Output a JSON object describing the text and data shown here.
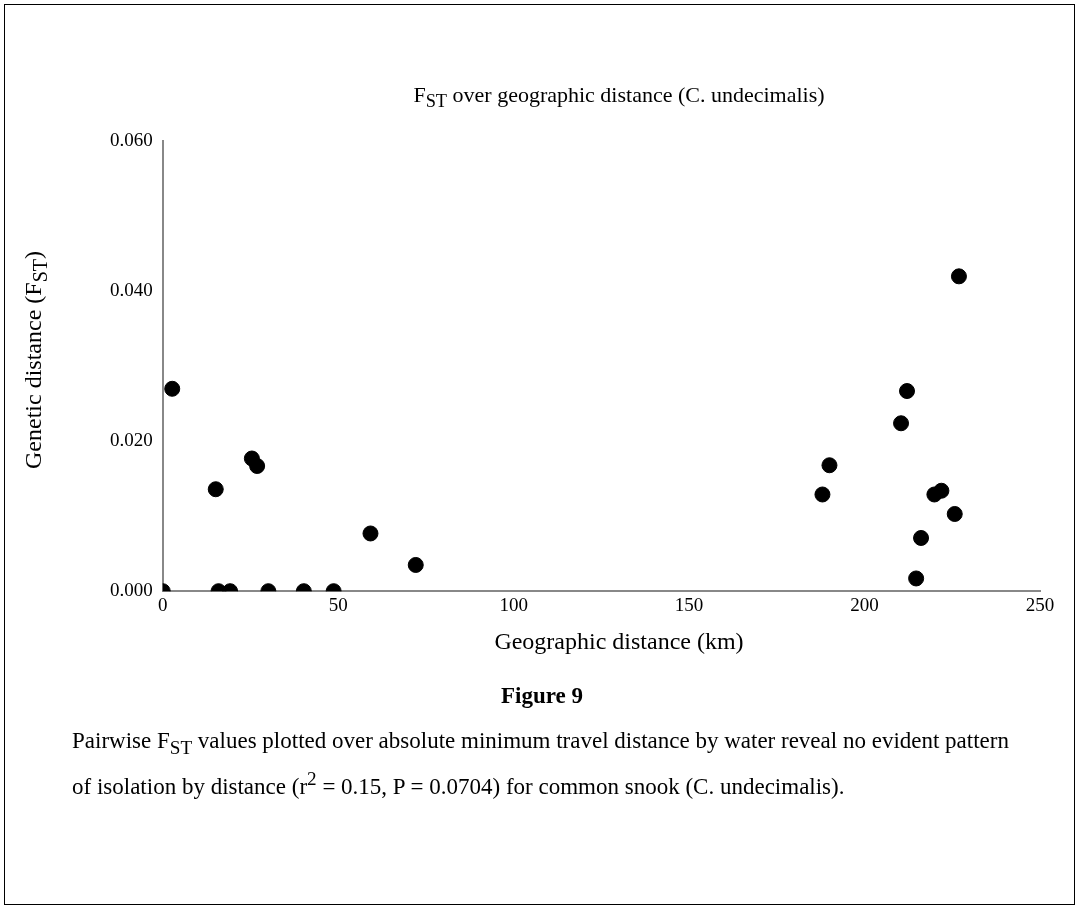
{
  "chart_data": {
    "type": "scatter",
    "title": "F$_{ST}$ over geographic distance (C. undecimalis)",
    "xlabel": "Geographic distance (km)",
    "ylabel": "Genetic distance (F$_{ST}$)",
    "annotations": [
      "Figure 9",
      "Pairwise F$_{ST}$ values plotted over absolute minimum travel distance by water reveal no evident pattern of isolation by distance (r$^{2}$ = 0.15, P = 0.0704) for common snook (C. undecimalis)."
    ],
    "x": [
      0,
      2.7,
      15.1,
      15.9,
      19.2,
      25.4,
      26.9,
      30.1,
      40.2,
      48.7,
      59.2,
      72.1,
      188,
      190,
      210.4,
      212.1,
      214.7,
      216.1,
      219.9,
      221.9,
      225.7,
      226.9
    ],
    "values": [
      0,
      0.027,
      0.0136,
      0,
      0,
      0.0177,
      0.0167,
      0,
      0,
      0,
      0.0077,
      0.0035,
      0.0129,
      0.0168,
      0.0224,
      0.0267,
      0.0017,
      0.0071,
      0.0129,
      0.0134,
      0.0103,
      0.042
    ],
    "color": "#000000",
    "marker": "circle",
    "grid": false,
    "legend": false,
    "xlim": [
      0,
      250
    ],
    "xticks": [
      0,
      50,
      100,
      150,
      200,
      250
    ],
    "ylim": [
      0,
      0.06
    ],
    "yticks": [
      {
        "value": 0,
        "label": "0.000"
      },
      {
        "value": 0.02,
        "label": "0.020"
      },
      {
        "value": 0.04,
        "label": "0.040"
      },
      {
        "value": 0.06,
        "label": "0.060"
      }
    ]
  }
}
